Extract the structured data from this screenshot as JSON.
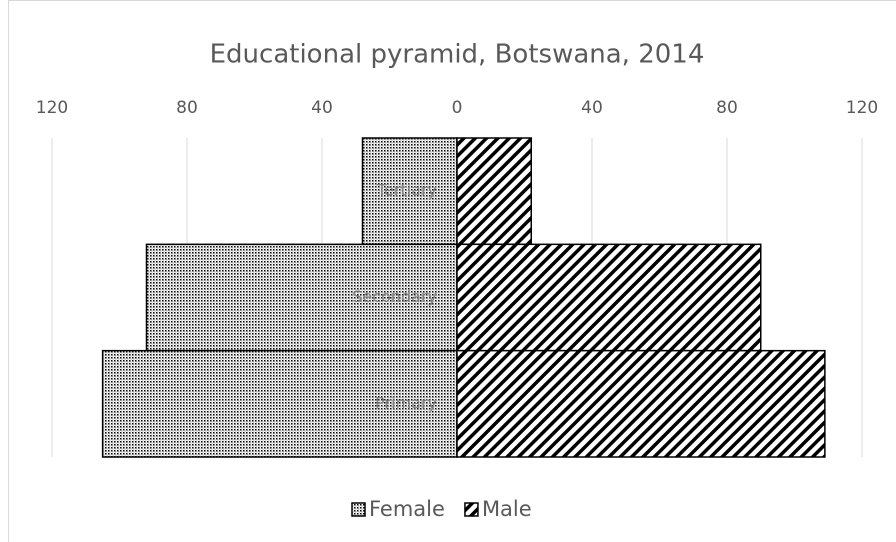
{
  "chart_data": {
    "type": "pyramid",
    "title": "Educational pyramid, Botswana, 2014",
    "categories": [
      "Tertiary",
      "Secondary",
      "Primary"
    ],
    "series": [
      {
        "name": "Female",
        "color": "#000000",
        "pattern": "dots",
        "values": [
          -28,
          -92,
          -105
        ]
      },
      {
        "name": "Male",
        "color": "#000000",
        "pattern": "diagonal",
        "values": [
          22,
          90,
          109
        ]
      }
    ],
    "xlim": [
      -120,
      120
    ],
    "xticks": [
      {
        "value": -120,
        "label": "120"
      },
      {
        "value": -80,
        "label": "80"
      },
      {
        "value": -40,
        "label": "40"
      },
      0,
      40,
      80,
      120
    ],
    "grid": true,
    "legend": "bottom"
  }
}
